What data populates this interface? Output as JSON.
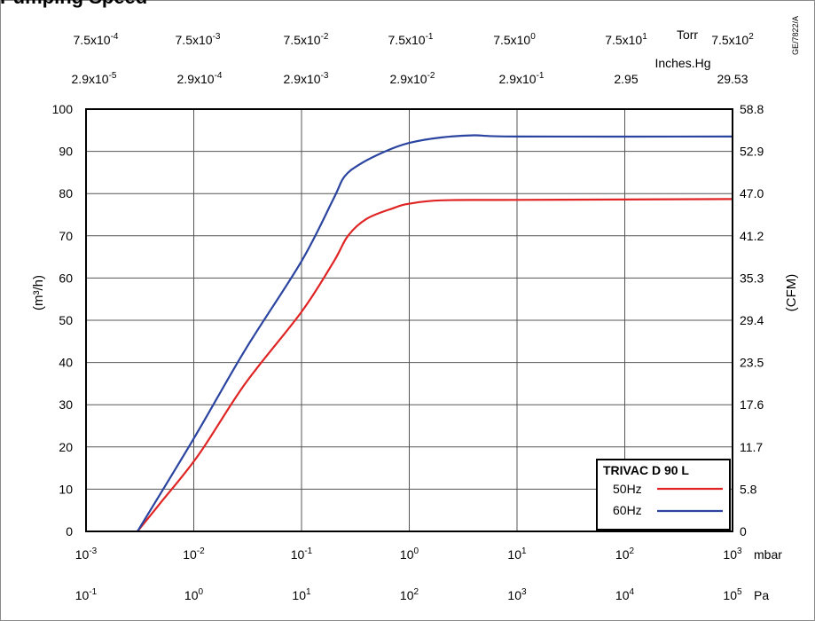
{
  "page": {
    "title": "Pumping Speed",
    "code": "GE/7822/A"
  },
  "chart_data": {
    "type": "line",
    "title": "",
    "xscale": "log",
    "xlim": [
      0.001,
      1000
    ],
    "ylim": [
      0,
      100
    ],
    "grid": true,
    "legend_position": "bottom-right",
    "ylabel_left": "(m³/h)",
    "ylabel_right": "(CFM)",
    "x_ticks_mbar": {
      "bases": [
        "10",
        "10",
        "10",
        "10",
        "10",
        "10",
        "10"
      ],
      "exps": [
        "-3",
        "-2",
        "-1",
        "0",
        "1",
        "2",
        "3"
      ],
      "unit": "mbar"
    },
    "x_ticks_pa": {
      "bases": [
        "10",
        "10",
        "10",
        "10",
        "10",
        "10",
        "10"
      ],
      "exps": [
        "-1",
        "0",
        "1",
        "2",
        "3",
        "4",
        "5"
      ],
      "unit": "Pa"
    },
    "top_torr": {
      "unit": "Torr",
      "labels": [
        {
          "base": "7.5x10",
          "exp": "-4"
        },
        {
          "base": "7.5x10",
          "exp": "-3"
        },
        {
          "base": "7.5x10",
          "exp": "-2"
        },
        {
          "base": "7.5x10",
          "exp": "-1"
        },
        {
          "base": "7.5x10",
          "exp": "0"
        },
        {
          "base": "7.5x10",
          "exp": "1"
        },
        {
          "base": "7.5x10",
          "exp": "2"
        }
      ]
    },
    "top_inhg": {
      "unit": "Inches.Hg",
      "labels": [
        {
          "base": "2.9x10",
          "exp": "-5"
        },
        {
          "base": "2.9x10",
          "exp": "-4"
        },
        {
          "base": "2.9x10",
          "exp": "-3"
        },
        {
          "base": "2.9x10",
          "exp": "-2"
        },
        {
          "base": "2.9x10",
          "exp": "-1"
        },
        {
          "base": "2.95",
          "exp": ""
        },
        {
          "base": "29.53",
          "exp": ""
        }
      ]
    },
    "y_ticks_left": [
      "0",
      "10",
      "20",
      "30",
      "40",
      "50",
      "60",
      "70",
      "80",
      "90",
      "100"
    ],
    "y_ticks_right": [
      "0",
      "5.8",
      "11.7",
      "17.6",
      "23.5",
      "29.4",
      "35.3",
      "41.2",
      "47.0",
      "52.9",
      "58.8"
    ],
    "legend_title": "TRIVAC D 90 L",
    "series": [
      {
        "name": "50Hz",
        "color": "#e02424",
        "points": [
          [
            0.003,
            0
          ],
          [
            0.005,
            7
          ],
          [
            0.011,
            18
          ],
          [
            0.03,
            35
          ],
          [
            0.1,
            52
          ],
          [
            0.2,
            64
          ],
          [
            0.27,
            70
          ],
          [
            0.4,
            74
          ],
          [
            0.7,
            76.5
          ],
          [
            1,
            77.6
          ],
          [
            2,
            78.4
          ],
          [
            10,
            78.5
          ],
          [
            1000,
            78.7
          ]
        ]
      },
      {
        "name": "60Hz",
        "color": "#2a44a0",
        "points": [
          [
            0.003,
            0
          ],
          [
            0.01,
            22
          ],
          [
            0.03,
            43
          ],
          [
            0.1,
            64
          ],
          [
            0.2,
            79
          ],
          [
            0.25,
            84
          ],
          [
            0.35,
            87
          ],
          [
            0.6,
            90
          ],
          [
            1,
            92
          ],
          [
            2,
            93.3
          ],
          [
            4,
            93.8
          ],
          [
            10,
            93.5
          ],
          [
            1000,
            93.5
          ]
        ]
      }
    ]
  }
}
